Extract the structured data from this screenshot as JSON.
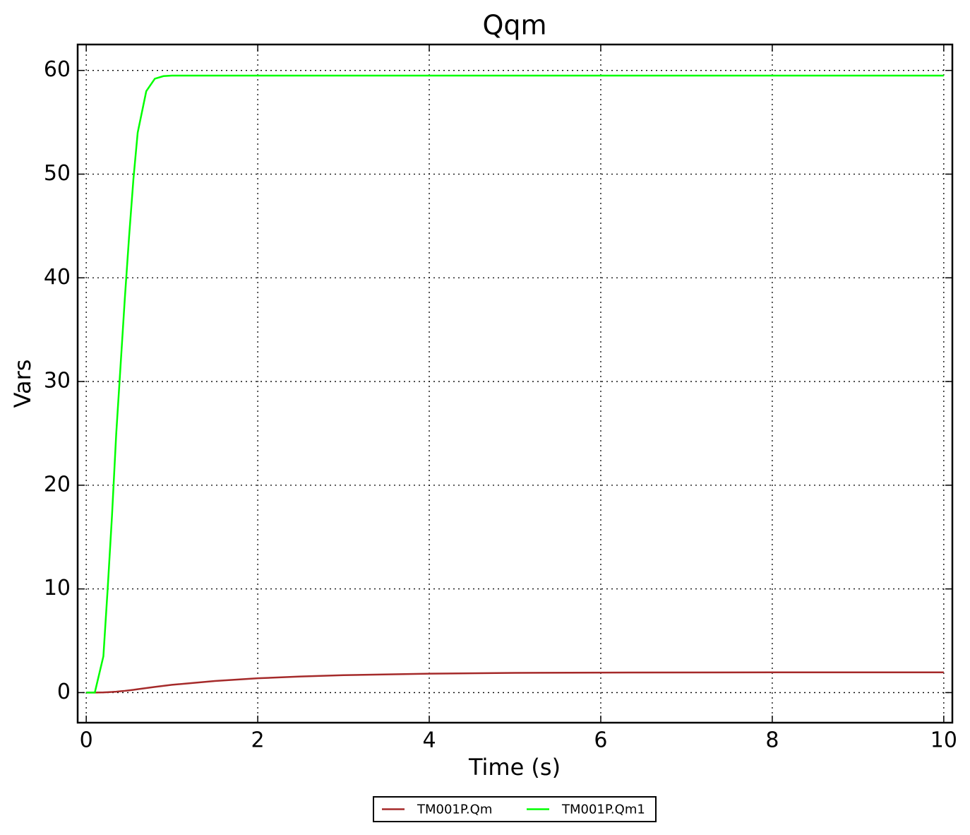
{
  "chart_data": {
    "type": "line",
    "title": "Qqm",
    "xlabel": "Time (s)",
    "ylabel": "Vars",
    "x": [
      0,
      0.1,
      0.2,
      0.25,
      0.3,
      0.35,
      0.4,
      0.45,
      0.5,
      0.55,
      0.6,
      0.7,
      0.8,
      0.9,
      1,
      1.5,
      2,
      2.5,
      3,
      4,
      5,
      6,
      8,
      10
    ],
    "series": [
      {
        "name": "TM001P.Qm",
        "color": "#a52a2a",
        "values": [
          0,
          0,
          0.02,
          0.04,
          0.06,
          0.09,
          0.13,
          0.17,
          0.22,
          0.27,
          0.33,
          0.44,
          0.55,
          0.65,
          0.75,
          1.12,
          1.38,
          1.55,
          1.68,
          1.83,
          1.9,
          1.93,
          1.95,
          1.95
        ]
      },
      {
        "name": "TM001P.Qm1",
        "color": "#00ff00",
        "values": [
          0,
          0,
          3.5,
          10,
          17,
          25,
          31.5,
          38,
          44,
          49.5,
          54,
          58,
          59.2,
          59.45,
          59.5,
          59.5,
          59.5,
          59.5,
          59.5,
          59.5,
          59.5,
          59.5,
          59.5,
          59.5
        ]
      }
    ],
    "xlim": [
      -0.1,
      10.1
    ],
    "ylim": [
      -2.9,
      62.5
    ],
    "xticks": [
      0,
      2,
      4,
      6,
      8,
      10
    ],
    "yticks": [
      0,
      10,
      20,
      30,
      40,
      50,
      60
    ],
    "grid": true,
    "legend": "bottom"
  }
}
